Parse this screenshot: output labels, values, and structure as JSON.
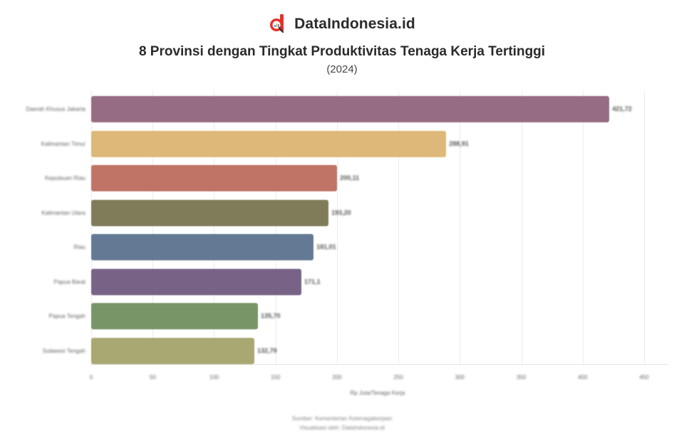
{
  "brand": {
    "name": "DataIndonesia.id",
    "logo_icon": "dataindonesia-logo-icon",
    "logo_color": "#e8302a"
  },
  "header": {
    "title": "8 Provinsi dengan Tingkat Produktivitas Tenaga Kerja Tertinggi",
    "subtitle": "(2024)"
  },
  "axis": {
    "x_label": "Rp Juta/Tenaga Kerja",
    "ticks": [
      "0",
      "50",
      "100",
      "150",
      "200",
      "250",
      "300",
      "350",
      "400",
      "450"
    ]
  },
  "footer": {
    "source": "Sumber: Kementerian Ketenagakerjaan",
    "credit": "Visualisasi oleh: DataIndonesia.id"
  },
  "rows": [
    {
      "label": "Daerah Khusus Jakarta",
      "value_text": "421,72",
      "color": "#956c82"
    },
    {
      "label": "Kalimantan Timur",
      "value_text": "288,91",
      "color": "#deb878"
    },
    {
      "label": "Kepulauan Riau",
      "value_text": "200,11",
      "color": "#bf7466"
    },
    {
      "label": "Kalimantan Utara",
      "value_text": "193,20",
      "color": "#807c5a"
    },
    {
      "label": "Riau",
      "value_text": "181,01",
      "color": "#647a94"
    },
    {
      "label": "Papua Barat",
      "value_text": "171,1",
      "color": "#786386"
    },
    {
      "label": "Papua Tengah",
      "value_text": "135,70",
      "color": "#779567"
    },
    {
      "label": "Sulawesi Tengah",
      "value_text": "132,79",
      "color": "#a9a873"
    }
  ],
  "chart_data": {
    "type": "bar",
    "orientation": "horizontal",
    "title": "8 Provinsi dengan Tingkat Produktivitas Tenaga Kerja Tertinggi",
    "subtitle": "(2024)",
    "categories": [
      "Daerah Khusus Jakarta",
      "Kalimantan Timur",
      "Kepulauan Riau",
      "Kalimantan Utara",
      "Riau",
      "Papua Barat",
      "Papua Tengah",
      "Sulawesi Tengah"
    ],
    "values": [
      421.72,
      288.91,
      200.11,
      193.2,
      181.01,
      171.1,
      135.7,
      132.79
    ],
    "colors": [
      "#956c82",
      "#deb878",
      "#bf7466",
      "#807c5a",
      "#647a94",
      "#786386",
      "#779567",
      "#a9a873"
    ],
    "xlabel": "Rp Juta/Tenaga Kerja",
    "ylabel": "",
    "xlim": [
      0,
      450
    ],
    "xticks": [
      0,
      50,
      100,
      150,
      200,
      250,
      300,
      350,
      400,
      450
    ],
    "grid": "vertical",
    "legend": "none",
    "data_labels": true,
    "source": "Sumber: Kementerian Ketenagakerjaan"
  }
}
